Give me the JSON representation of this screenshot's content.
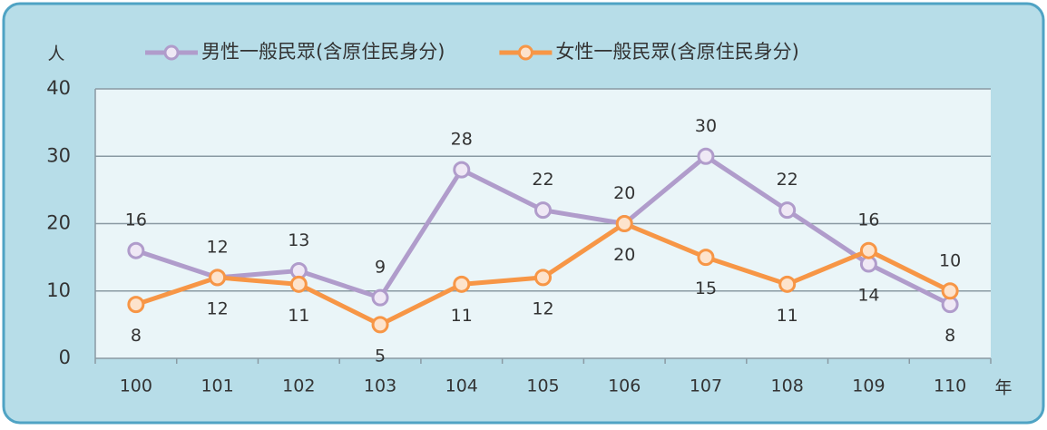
{
  "chart_data": {
    "type": "line",
    "y_label": "人",
    "x_label": "年",
    "categories": [
      "100",
      "101",
      "102",
      "103",
      "104",
      "105",
      "106",
      "107",
      "108",
      "109",
      "110"
    ],
    "series": [
      {
        "name": "男性一般民眾(含原住民身分)",
        "color": "#b09ccb",
        "values": [
          16,
          12,
          13,
          9,
          28,
          22,
          20,
          30,
          22,
          14,
          8
        ]
      },
      {
        "name": "女性一般民眾(含原住民身分)",
        "color": "#f79646",
        "values": [
          8,
          12,
          11,
          5,
          11,
          12,
          20,
          15,
          11,
          16,
          10
        ]
      }
    ],
    "ylim": [
      0,
      40
    ],
    "yticks": [
      0,
      10,
      20,
      30,
      40
    ],
    "grid": true
  }
}
